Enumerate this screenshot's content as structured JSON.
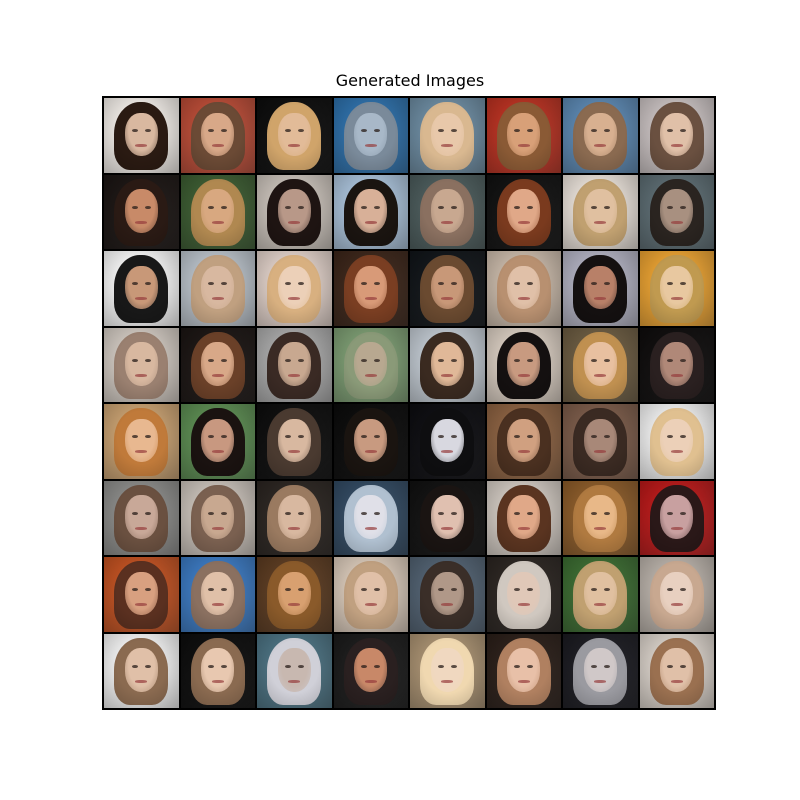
{
  "title": "Generated Images",
  "grid": {
    "rows": 8,
    "cols": 8,
    "tiles": [
      {
        "bg": "#f2ede8",
        "hair": "#2a1a12",
        "skin": "#d9b8a0"
      },
      {
        "bg": "#b84a35",
        "hair": "#6b4a35",
        "skin": "#d8a888"
      },
      {
        "bg": "#0c0c0c",
        "hair": "#d0a46a",
        "skin": "#e2bb98"
      },
      {
        "bg": "#2c6ea8",
        "hair": "#7a8a9a",
        "skin": "#a8b8c8"
      },
      {
        "bg": "#6b8aa0",
        "hair": "#d9b890",
        "skin": "#e8c8aa"
      },
      {
        "bg": "#b83020",
        "hair": "#8a5a35",
        "skin": "#d8a078"
      },
      {
        "bg": "#5a86b0",
        "hair": "#8a6a50",
        "skin": "#d8b090"
      },
      {
        "bg": "#c8c0c0",
        "hair": "#6a5040",
        "skin": "#e0c0a8"
      },
      {
        "bg": "#1a1412",
        "hair": "#2a1a14",
        "skin": "#c88a68"
      },
      {
        "bg": "#3a5a30",
        "hair": "#b08850",
        "skin": "#d8a880"
      },
      {
        "bg": "#c8c0b8",
        "hair": "#1e1412",
        "skin": "#b89888"
      },
      {
        "bg": "#a8c0d8",
        "hair": "#1a1410",
        "skin": "#d8b098"
      },
      {
        "bg": "#4a5a5a",
        "hair": "#8a7060",
        "skin": "#c8a890"
      },
      {
        "bg": "#101010",
        "hair": "#7a3a1e",
        "skin": "#e0a888"
      },
      {
        "bg": "#e8e0d8",
        "hair": "#c0a070",
        "skin": "#e0c0a0"
      },
      {
        "bg": "#5a6a70",
        "hair": "#2a2420",
        "skin": "#a89080"
      },
      {
        "bg": "#f8f8f8",
        "hair": "#181818",
        "skin": "#c89878"
      },
      {
        "bg": "#b8c0c8",
        "hair": "#c0a080",
        "skin": "#d8b8a0"
      },
      {
        "bg": "#e0d0c8",
        "hair": "#d8b080",
        "skin": "#ecd0b8"
      },
      {
        "bg": "#3a2418",
        "hair": "#7a3e22",
        "skin": "#d89a78"
      },
      {
        "bg": "#101418",
        "hair": "#6a4a30",
        "skin": "#c89878"
      },
      {
        "bg": "#c8b8a8",
        "hair": "#b89070",
        "skin": "#e0c0a8"
      },
      {
        "bg": "#b0b0c0",
        "hair": "#141010",
        "skin": "#b88068"
      },
      {
        "bg": "#e8a030",
        "hair": "#c09a50",
        "skin": "#e8c8a0"
      },
      {
        "bg": "#d0c8c0",
        "hair": "#9a8070",
        "skin": "#d8b8a0"
      },
      {
        "bg": "#1a1412",
        "hair": "#6a4028",
        "skin": "#d8a888"
      },
      {
        "bg": "#a8a8a8",
        "hair": "#3a2a24",
        "skin": "#c8a890"
      },
      {
        "bg": "#7a9a70",
        "hair": "#8a9a78",
        "skin": "#b8a890"
      },
      {
        "bg": "#c0c8d0",
        "hair": "#3a2a20",
        "skin": "#e0b898"
      },
      {
        "bg": "#d8ccc0",
        "hair": "#141010",
        "skin": "#c89a80"
      },
      {
        "bg": "#6a5a40",
        "hair": "#c09050",
        "skin": "#e8c0a0"
      },
      {
        "bg": "#0e0c0c",
        "hair": "#2a2020",
        "skin": "#b08878"
      },
      {
        "bg": "#c8a070",
        "hair": "#c07a3a",
        "skin": "#e8b890"
      },
      {
        "bg": "#5a8a50",
        "hair": "#1a1210",
        "skin": "#c89880"
      },
      {
        "bg": "#0c0c0c",
        "hair": "#4a3a30",
        "skin": "#d8b8a0"
      },
      {
        "bg": "#0a0a0a",
        "hair": "#1a1410",
        "skin": "#c89a80"
      },
      {
        "bg": "#0c0c10",
        "hair": "#0e0e10",
        "skin": "#d8d8e0"
      },
      {
        "bg": "#8a6040",
        "hair": "#4a3020",
        "skin": "#d0a080"
      },
      {
        "bg": "#7a5a48",
        "hair": "#3a2a22",
        "skin": "#a88878"
      },
      {
        "bg": "#f0f0f0",
        "hair": "#e0c090",
        "skin": "#ecd0b8"
      },
      {
        "bg": "#8a8a88",
        "hair": "#6a5040",
        "skin": "#c8a898"
      },
      {
        "bg": "#c8c0b8",
        "hair": "#7a6050",
        "skin": "#c8a890"
      },
      {
        "bg": "#2a2420",
        "hair": "#9a7a60",
        "skin": "#d8b8a0"
      },
      {
        "bg": "#304860",
        "hair": "#b0c0d0",
        "skin": "#e0e0e8"
      },
      {
        "bg": "#101010",
        "hair": "#1a1412",
        "skin": "#e0c0b0"
      },
      {
        "bg": "#d0c8c0",
        "hair": "#5a3420",
        "skin": "#e0a888"
      },
      {
        "bg": "#8a5a28",
        "hair": "#b07a40",
        "skin": "#e8b888"
      },
      {
        "bg": "#b81818",
        "hair": "#2a1818",
        "skin": "#c8a0a0"
      },
      {
        "bg": "#c05020",
        "hair": "#5a3020",
        "skin": "#d8a080"
      },
      {
        "bg": "#3a78c0",
        "hair": "#8a7060",
        "skin": "#e0c0a8"
      },
      {
        "bg": "#5a3a20",
        "hair": "#8a5a2a",
        "skin": "#d8a070"
      },
      {
        "bg": "#d8c8b8",
        "hair": "#c0a080",
        "skin": "#e0c0a8"
      },
      {
        "bg": "#506070",
        "hair": "#3a2e28",
        "skin": "#b09888"
      },
      {
        "bg": "#2a2420",
        "hair": "#d0c8c0",
        "skin": "#e0c8b8"
      },
      {
        "bg": "#3a6a30",
        "hair": "#c0a070",
        "skin": "#e0c0a0"
      },
      {
        "bg": "#b8b0a8",
        "hair": "#c8a890",
        "skin": "#e8d0c0"
      },
      {
        "bg": "#f4f4f4",
        "hair": "#8a6a50",
        "skin": "#e0c0a8"
      },
      {
        "bg": "#0c0c0c",
        "hair": "#8a6a50",
        "skin": "#e8c8b0"
      },
      {
        "bg": "#4a7080",
        "hair": "#d0d0d8",
        "skin": "#c8b8b0"
      },
      {
        "bg": "#1a1a1a",
        "hair": "#2a2020",
        "skin": "#c88868"
      },
      {
        "bg": "#a89070",
        "hair": "#f0d8b0",
        "skin": "#f0d8c0"
      },
      {
        "bg": "#2a1e18",
        "hair": "#b08060",
        "skin": "#e8c0a8"
      },
      {
        "bg": "#1a1a20",
        "hair": "#9a9aa0",
        "skin": "#d0c8c8"
      },
      {
        "bg": "#d8d0c8",
        "hair": "#9a7050",
        "skin": "#e0c0a8"
      }
    ]
  }
}
